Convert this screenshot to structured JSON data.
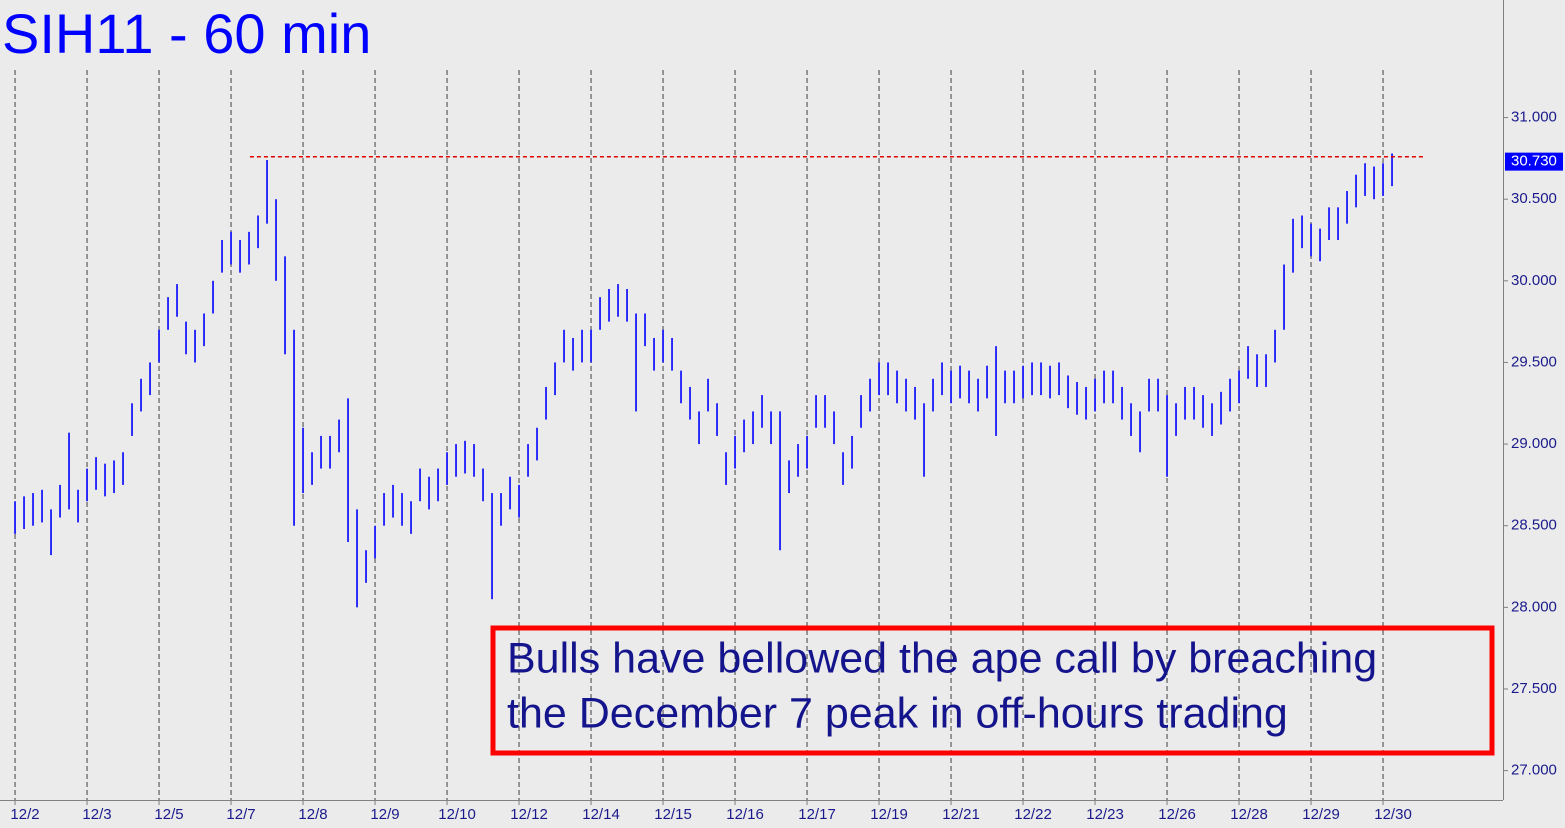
{
  "chart_data": {
    "type": "ohlc",
    "title": "SIH11 - 60 min",
    "color": "#0000ff",
    "xlim": [
      -1.67,
      165.33
    ],
    "xticks": [
      {
        "value": 0,
        "label": "12/2"
      },
      {
        "value": 8,
        "label": "12/3"
      },
      {
        "value": 16,
        "label": "12/5"
      },
      {
        "value": 24,
        "label": "12/7"
      },
      {
        "value": 32,
        "label": "12/8"
      },
      {
        "value": 40,
        "label": "12/9"
      },
      {
        "value": 48,
        "label": "12/10"
      },
      {
        "value": 56,
        "label": "12/12"
      },
      {
        "value": 64,
        "label": "12/14"
      },
      {
        "value": 72,
        "label": "12/15"
      },
      {
        "value": 80,
        "label": "12/16"
      },
      {
        "value": 88,
        "label": "12/17"
      },
      {
        "value": 96,
        "label": "12/19"
      },
      {
        "value": 104,
        "label": "12/21"
      },
      {
        "value": 112,
        "label": "12/22"
      },
      {
        "value": 120,
        "label": "12/23"
      },
      {
        "value": 128,
        "label": "12/26"
      },
      {
        "value": 136,
        "label": "12/28"
      },
      {
        "value": 144,
        "label": "12/29"
      },
      {
        "value": 152,
        "label": "12/30"
      }
    ],
    "ylim": [
      26.82,
      31.72
    ],
    "yticks": [
      {
        "value": 27,
        "label": "27.000"
      },
      {
        "value": 27.5,
        "label": "27.500"
      },
      {
        "value": 28,
        "label": "28.000"
      },
      {
        "value": 28.5,
        "label": "28.500"
      },
      {
        "value": 29,
        "label": "29.000"
      },
      {
        "value": 29.5,
        "label": "29.500"
      },
      {
        "value": 30,
        "label": "30.000"
      },
      {
        "value": 30.5,
        "label": "30.500"
      },
      {
        "value": 31,
        "label": "31.000"
      }
    ],
    "last_price": {
      "value": 30.73,
      "label": "30.730"
    },
    "hline": {
      "value": 30.76,
      "x": [
        26.1,
        156.7
      ],
      "color": "#e00000"
    },
    "annotation": [
      "Bulls have bellowed the ape call by breaching",
      "the December 7 peak in off-hours trading"
    ],
    "high": [
      28.65,
      28.68,
      28.7,
      28.72,
      28.6,
      28.75,
      29.07,
      28.72,
      28.85,
      28.92,
      28.88,
      28.9,
      28.95,
      29.25,
      29.4,
      29.5,
      29.7,
      29.9,
      29.98,
      29.75,
      29.7,
      29.8,
      30.0,
      30.25,
      30.3,
      30.25,
      30.3,
      30.4,
      30.74,
      30.5,
      30.15,
      29.7,
      29.1,
      28.95,
      29.05,
      29.05,
      29.15,
      29.28,
      28.6,
      28.35,
      28.5,
      28.7,
      28.75,
      28.7,
      28.65,
      28.85,
      28.8,
      28.85,
      28.95,
      29.0,
      29.02,
      29.0,
      28.85,
      28.7,
      28.7,
      28.8,
      28.75,
      29.0,
      29.1,
      29.35,
      29.5,
      29.7,
      29.65,
      29.7,
      29.7,
      29.9,
      29.95,
      29.98,
      29.95,
      29.8,
      29.8,
      29.65,
      29.7,
      29.65,
      29.45,
      29.35,
      29.2,
      29.4,
      29.25,
      28.95,
      29.05,
      29.15,
      29.2,
      29.3,
      29.2,
      29.2,
      28.9,
      29.0,
      29.05,
      29.3,
      29.3,
      29.2,
      28.95,
      29.05,
      29.3,
      29.4,
      29.5,
      29.5,
      29.45,
      29.4,
      29.35,
      29.25,
      29.4,
      29.5,
      29.45,
      29.48,
      29.45,
      29.4,
      29.48,
      29.6,
      29.45,
      29.45,
      29.48,
      29.5,
      29.5,
      29.48,
      29.5,
      29.42,
      29.38,
      29.35,
      29.4,
      29.45,
      29.45,
      29.35,
      29.25,
      29.2,
      29.4,
      29.4,
      29.3,
      29.25,
      29.35,
      29.35,
      29.3,
      29.25,
      29.32,
      29.4,
      29.45,
      29.6,
      29.55,
      29.55,
      29.7,
      30.1,
      30.38,
      30.4,
      30.35,
      30.32,
      30.45,
      30.45,
      30.55,
      30.65,
      30.72,
      30.7,
      30.72,
      30.78
    ],
    "low": [
      28.45,
      28.48,
      28.5,
      28.52,
      28.32,
      28.55,
      28.6,
      28.52,
      28.65,
      28.72,
      28.68,
      28.7,
      28.75,
      29.05,
      29.2,
      29.3,
      29.5,
      29.7,
      29.78,
      29.55,
      29.5,
      29.6,
      29.8,
      30.05,
      30.1,
      30.05,
      30.1,
      30.2,
      30.35,
      30.0,
      29.55,
      28.5,
      28.7,
      28.75,
      28.85,
      28.85,
      28.95,
      28.4,
      28.0,
      28.15,
      28.3,
      28.5,
      28.55,
      28.5,
      28.45,
      28.65,
      28.6,
      28.65,
      28.75,
      28.8,
      28.82,
      28.8,
      28.65,
      28.05,
      28.5,
      28.6,
      28.55,
      28.8,
      28.9,
      29.15,
      29.3,
      29.5,
      29.45,
      29.5,
      29.5,
      29.7,
      29.75,
      29.78,
      29.75,
      29.2,
      29.6,
      29.45,
      29.5,
      29.45,
      29.25,
      29.15,
      29.0,
      29.2,
      29.05,
      28.75,
      28.85,
      28.95,
      29.0,
      29.1,
      29.0,
      28.35,
      28.7,
      28.8,
      28.85,
      29.1,
      29.1,
      29.0,
      28.75,
      28.85,
      29.1,
      29.2,
      29.3,
      29.3,
      29.25,
      29.2,
      29.15,
      28.8,
      29.2,
      29.3,
      29.25,
      29.28,
      29.25,
      29.2,
      29.28,
      29.05,
      29.25,
      29.25,
      29.28,
      29.3,
      29.3,
      29.28,
      29.3,
      29.22,
      29.18,
      29.15,
      29.2,
      29.25,
      29.25,
      29.15,
      29.05,
      28.95,
      29.2,
      29.2,
      28.8,
      29.05,
      29.15,
      29.15,
      29.1,
      29.05,
      29.12,
      29.2,
      29.25,
      29.4,
      29.35,
      29.35,
      29.5,
      29.7,
      30.05,
      30.2,
      30.15,
      30.12,
      30.25,
      30.25,
      30.35,
      30.45,
      30.52,
      30.5,
      30.52,
      30.58
    ]
  }
}
